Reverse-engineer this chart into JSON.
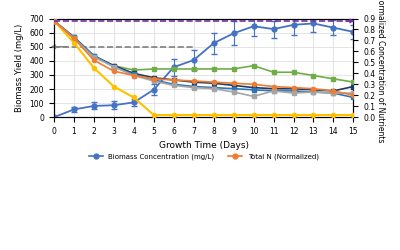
{
  "xlabel": "Growth Time (Days)",
  "ylabel_left": "Biomass Yield (mg/L)",
  "ylabel_right": "Normalized Concentration of Nutrients",
  "xlim": [
    0,
    15
  ],
  "ylim_left": [
    0,
    700
  ],
  "ylim_right": [
    0,
    0.9
  ],
  "xticks": [
    0,
    1,
    2,
    3,
    4,
    5,
    6,
    7,
    8,
    9,
    10,
    11,
    12,
    13,
    14,
    15
  ],
  "biomass_x": [
    0,
    1,
    2,
    3,
    4,
    5,
    6,
    7,
    8,
    9,
    10,
    11,
    12,
    13,
    14,
    15
  ],
  "biomass_y": [
    0,
    55,
    80,
    85,
    105,
    195,
    355,
    405,
    525,
    595,
    645,
    625,
    655,
    665,
    635,
    605
  ],
  "biomass_err": [
    0,
    20,
    25,
    30,
    25,
    40,
    60,
    70,
    75,
    85,
    70,
    60,
    70,
    60,
    55,
    50
  ],
  "biomass_color": "#4472C4",
  "totalN_x": [
    0,
    1,
    2,
    3,
    4,
    5,
    6,
    7,
    8,
    9,
    10,
    11,
    12,
    13,
    14,
    15
  ],
  "totalN_y": [
    0.88,
    0.72,
    0.52,
    0.42,
    0.38,
    0.35,
    0.34,
    0.33,
    0.32,
    0.31,
    0.3,
    0.28,
    0.27,
    0.26,
    0.24,
    0.2
  ],
  "totalN_color": "#ED7D31",
  "line_green_x": [
    0,
    1,
    2,
    3,
    4,
    5,
    6,
    7,
    8,
    9,
    10,
    11,
    12,
    13,
    14,
    15
  ],
  "line_green_y": [
    0.88,
    0.72,
    0.55,
    0.47,
    0.43,
    0.44,
    0.44,
    0.44,
    0.44,
    0.44,
    0.47,
    0.41,
    0.41,
    0.38,
    0.35,
    0.32
  ],
  "line_green_color": "#70AD47",
  "line_darkblue_x": [
    0,
    1,
    2,
    3,
    4,
    5,
    6,
    7,
    8,
    9,
    10,
    11,
    12,
    13,
    14,
    15
  ],
  "line_darkblue_y": [
    0.88,
    0.73,
    0.56,
    0.47,
    0.4,
    0.36,
    0.34,
    0.32,
    0.31,
    0.29,
    0.27,
    0.26,
    0.26,
    0.25,
    0.24,
    0.28
  ],
  "line_darkblue_color": "#203864",
  "line_lightblue_x": [
    0,
    1,
    2,
    3,
    4,
    5,
    6,
    7,
    8,
    9,
    10,
    11,
    12,
    13,
    14,
    15
  ],
  "line_lightblue_y": [
    0.88,
    0.73,
    0.56,
    0.46,
    0.39,
    0.34,
    0.3,
    0.28,
    0.27,
    0.26,
    0.25,
    0.24,
    0.24,
    0.23,
    0.22,
    0.18
  ],
  "line_lightblue_color": "#2E75B6",
  "line_gray_x": [
    0,
    1,
    2,
    3,
    4,
    5,
    6,
    7,
    8,
    9,
    10,
    11,
    12,
    13,
    14,
    15
  ],
  "line_gray_y": [
    0.88,
    0.72,
    0.55,
    0.46,
    0.38,
    0.33,
    0.29,
    0.27,
    0.26,
    0.23,
    0.19,
    0.24,
    0.22,
    0.23,
    0.22,
    0.22
  ],
  "line_gray_color": "#A5A5A5",
  "line_yellow_x": [
    0,
    1,
    2,
    3,
    4,
    5,
    6,
    7,
    8,
    9,
    10,
    11,
    12,
    13,
    14,
    15
  ],
  "line_yellow_y": [
    0.88,
    0.68,
    0.45,
    0.28,
    0.18,
    0.02,
    0.02,
    0.02,
    0.02,
    0.02,
    0.02,
    0.02,
    0.02,
    0.02,
    0.02,
    0.02
  ],
  "line_yellow_color": "#FFC000",
  "dashed_purple_y": 0.878,
  "dashed_purple_color": "#7030A0",
  "dashed_purple_x_start": 0,
  "dashed_purple_x_end": 15,
  "dashed_gray_y_left": 500,
  "dashed_gray_color": "#808080",
  "dashed_gray_x_start": 0,
  "dashed_gray_x_end": 7,
  "legend_biomass": "Biomass Concentration (mg/L)",
  "legend_totalN": "Total N (Normalized)",
  "bg_color": "#FFFFFF",
  "grid_color": "#D9D9D9"
}
